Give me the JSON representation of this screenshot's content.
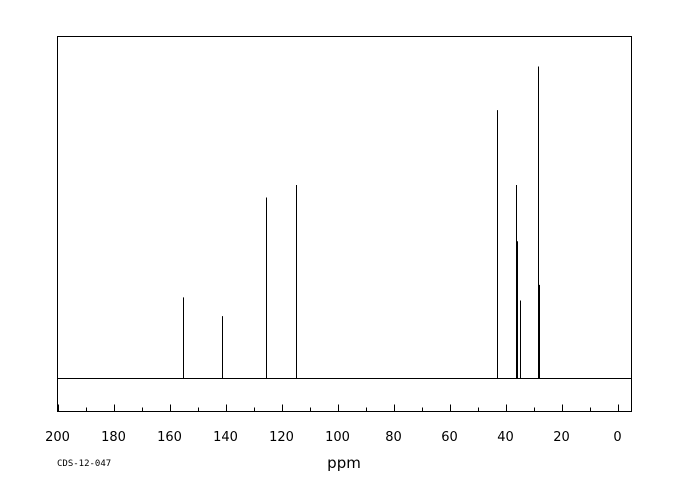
{
  "chart_data": {
    "type": "line",
    "xlabel": "ppm",
    "xlim": [
      200,
      -5
    ],
    "x_reversed": true,
    "x_ticks": [
      200,
      180,
      160,
      140,
      120,
      100,
      80,
      60,
      40,
      20,
      0
    ],
    "x_tick_labels": [
      "200",
      "180",
      "160",
      "140",
      "120",
      "100",
      "80",
      "60",
      "40",
      "20",
      "0"
    ],
    "ylim": [
      0,
      100
    ],
    "grid": false,
    "legend": "none",
    "code_label": "CDS-12-047",
    "line_color": "#000000",
    "peaks": [
      {
        "x": 155.1,
        "y": 26
      },
      {
        "x": 141.3,
        "y": 20
      },
      {
        "x": 125.5,
        "y": 58
      },
      {
        "x": 114.9,
        "y": 62
      },
      {
        "x": 42.9,
        "y": 86
      },
      {
        "x": 36.2,
        "y": 62
      },
      {
        "x": 35.9,
        "y": 44
      },
      {
        "x": 34.9,
        "y": 25
      },
      {
        "x": 28.4,
        "y": 100
      },
      {
        "x": 28.2,
        "y": 30
      }
    ]
  }
}
